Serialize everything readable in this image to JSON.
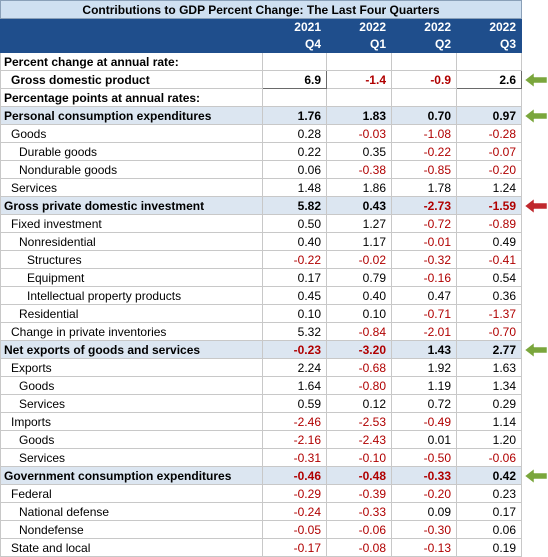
{
  "title": "Contributions to GDP Percent Change: The Last Four Quarters",
  "columns": [
    {
      "year": "2021",
      "quarter": "Q4"
    },
    {
      "year": "2022",
      "quarter": "Q1"
    },
    {
      "year": "2022",
      "quarter": "Q2"
    },
    {
      "year": "2022",
      "quarter": "Q3"
    }
  ],
  "rows": [
    {
      "label": "Percent change at annual rate:",
      "type": "section",
      "indent": 0,
      "values": [
        "",
        "",
        "",
        ""
      ]
    },
    {
      "label": "Gross domestic product",
      "type": "gdp",
      "indent": 1,
      "values": [
        "6.9",
        "-1.4",
        "-0.9",
        "2.6"
      ],
      "arrow": "green"
    },
    {
      "label": "Percentage points at annual rates:",
      "type": "section",
      "indent": 0,
      "values": [
        "",
        "",
        "",
        ""
      ]
    },
    {
      "label": "Personal consumption expenditures",
      "type": "highlight",
      "indent": 0,
      "values": [
        "1.76",
        "1.83",
        "0.70",
        "0.97"
      ],
      "arrow": "green"
    },
    {
      "label": "Goods",
      "type": "normal",
      "indent": 1,
      "values": [
        "0.28",
        "-0.03",
        "-1.08",
        "-0.28"
      ]
    },
    {
      "label": "Durable goods",
      "type": "normal",
      "indent": 2,
      "values": [
        "0.22",
        "0.35",
        "-0.22",
        "-0.07"
      ]
    },
    {
      "label": "Nondurable goods",
      "type": "normal",
      "indent": 2,
      "values": [
        "0.06",
        "-0.38",
        "-0.85",
        "-0.20"
      ]
    },
    {
      "label": "Services",
      "type": "normal",
      "indent": 1,
      "values": [
        "1.48",
        "1.86",
        "1.78",
        "1.24"
      ]
    },
    {
      "label": "Gross private domestic investment",
      "type": "highlight",
      "indent": 0,
      "values": [
        "5.82",
        "0.43",
        "-2.73",
        "-1.59"
      ],
      "arrow": "red"
    },
    {
      "label": "Fixed investment",
      "type": "normal",
      "indent": 1,
      "values": [
        "0.50",
        "1.27",
        "-0.72",
        "-0.89"
      ]
    },
    {
      "label": "Nonresidential",
      "type": "normal",
      "indent": 2,
      "values": [
        "0.40",
        "1.17",
        "-0.01",
        "0.49"
      ]
    },
    {
      "label": "Structures",
      "type": "normal",
      "indent": 3,
      "values": [
        "-0.22",
        "-0.02",
        "-0.32",
        "-0.41"
      ]
    },
    {
      "label": "Equipment",
      "type": "normal",
      "indent": 3,
      "values": [
        "0.17",
        "0.79",
        "-0.16",
        "0.54"
      ]
    },
    {
      "label": "Intellectual property products",
      "type": "normal",
      "indent": 3,
      "values": [
        "0.45",
        "0.40",
        "0.47",
        "0.36"
      ]
    },
    {
      "label": "Residential",
      "type": "normal",
      "indent": 2,
      "values": [
        "0.10",
        "0.10",
        "-0.71",
        "-1.37"
      ]
    },
    {
      "label": "Change in private inventories",
      "type": "normal",
      "indent": 1,
      "values": [
        "5.32",
        "-0.84",
        "-2.01",
        "-0.70"
      ]
    },
    {
      "label": "Net exports of goods and services",
      "type": "highlight",
      "indent": 0,
      "values": [
        "-0.23",
        "-3.20",
        "1.43",
        "2.77"
      ],
      "arrow": "green"
    },
    {
      "label": "Exports",
      "type": "normal",
      "indent": 1,
      "values": [
        "2.24",
        "-0.68",
        "1.92",
        "1.63"
      ]
    },
    {
      "label": "Goods",
      "type": "normal",
      "indent": 2,
      "values": [
        "1.64",
        "-0.80",
        "1.19",
        "1.34"
      ]
    },
    {
      "label": "Services",
      "type": "normal",
      "indent": 2,
      "values": [
        "0.59",
        "0.12",
        "0.72",
        "0.29"
      ]
    },
    {
      "label": "Imports",
      "type": "normal",
      "indent": 1,
      "values": [
        "-2.46",
        "-2.53",
        "-0.49",
        "1.14"
      ]
    },
    {
      "label": "Goods",
      "type": "normal",
      "indent": 2,
      "values": [
        "-2.16",
        "-2.43",
        "0.01",
        "1.20"
      ]
    },
    {
      "label": "Services",
      "type": "normal",
      "indent": 2,
      "values": [
        "-0.31",
        "-0.10",
        "-0.50",
        "-0.06"
      ]
    },
    {
      "label": "Government consumption expenditures",
      "type": "highlight",
      "indent": 0,
      "values": [
        "-0.46",
        "-0.48",
        "-0.33",
        "0.42"
      ],
      "arrow": "green"
    },
    {
      "label": "Federal",
      "type": "normal",
      "indent": 1,
      "values": [
        "-0.29",
        "-0.39",
        "-0.20",
        "0.23"
      ]
    },
    {
      "label": "National defense",
      "type": "normal",
      "indent": 2,
      "values": [
        "-0.24",
        "-0.33",
        "0.09",
        "0.17"
      ]
    },
    {
      "label": "Nondefense",
      "type": "normal",
      "indent": 2,
      "values": [
        "-0.05",
        "-0.06",
        "-0.30",
        "0.06"
      ]
    },
    {
      "label": "State and local",
      "type": "normal",
      "indent": 1,
      "values": [
        "-0.17",
        "-0.08",
        "-0.13",
        "0.19"
      ]
    }
  ],
  "colors": {
    "header_bg": "#1f4e8c",
    "title_bg": "#cfe0f1",
    "highlight_bg": "#dce6f1",
    "negative": "#b00000",
    "arrow_green": "#7aa63c",
    "arrow_red": "#c0282d"
  }
}
